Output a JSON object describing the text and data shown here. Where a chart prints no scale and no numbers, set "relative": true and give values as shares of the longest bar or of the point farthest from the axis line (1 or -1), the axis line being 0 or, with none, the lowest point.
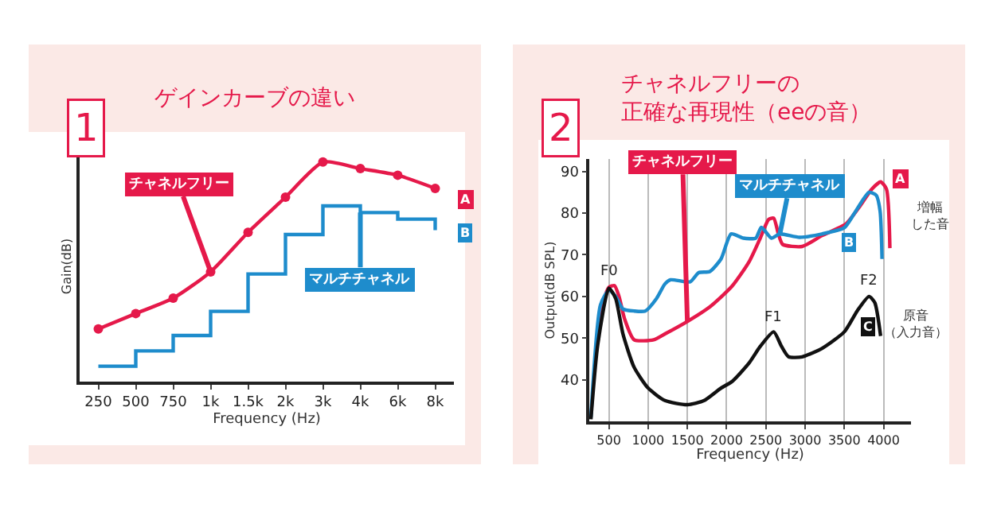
{
  "chart_data": [
    {
      "type": "line",
      "title": "ゲインカーブの違い",
      "xlabel": "Frequency (Hz)",
      "ylabel": "Gain(dB)",
      "relative": true,
      "legend": false,
      "annotations": [
        "1",
        "A",
        "B"
      ],
      "categories": [
        "250",
        "500",
        "750",
        "1k",
        "1.5k",
        "2k",
        "3k",
        "4k",
        "6k",
        "8k"
      ],
      "series": [
        {
          "name": "チャネルフリー",
          "color": "#e5194a",
          "marker": "circle",
          "values": [
            0.24,
            0.31,
            0.38,
            0.5,
            0.68,
            0.84,
            1.0,
            0.97,
            0.94,
            0.88
          ]
        },
        {
          "name": "マルチチャネル",
          "type": "step",
          "color": "#1e8ccc",
          "values": [
            0.07,
            0.14,
            0.21,
            0.32,
            0.49,
            0.67,
            0.8,
            0.77,
            0.74,
            0.69
          ]
        }
      ]
    },
    {
      "type": "line",
      "title": "チャネルフリーの正確な再現性（eeの音）",
      "xlabel": "Frequency (Hz)",
      "ylabel": "Output(dB SPL)",
      "legend": false,
      "grid": "x",
      "marker": "none",
      "xlim": [
        250,
        4350
      ],
      "xticks": [
        500,
        1000,
        1500,
        2000,
        2500,
        3000,
        3500,
        4000
      ],
      "ylim": [
        30,
        93
      ],
      "yticks": [
        40,
        50,
        60,
        70,
        80,
        90
      ],
      "annotations": [
        "2",
        "A",
        "B",
        "C",
        "増幅した音",
        "原音（入力音）",
        {
          "text": "F0",
          "x": 500,
          "y": 62.5
        },
        {
          "text": "F1",
          "x": 2600,
          "y": 51.5
        },
        {
          "text": "F2",
          "x": 3815,
          "y": 60
        }
      ],
      "series": [
        {
          "name": "チャネルフリー",
          "color": "#e5194a",
          "x": [
            357,
            429,
            500,
            571,
            629,
            700,
            821,
            1071,
            1214,
            1500,
            1786,
            2071,
            2286,
            2429,
            2536,
            2600,
            2660,
            2714,
            2964,
            3214,
            3519,
            3704,
            3852,
            3963,
            4037,
            4081
          ],
          "values": [
            49,
            58.6,
            62.2,
            62.6,
            60,
            54.6,
            49.6,
            49.6,
            51,
            54,
            57.5,
            62.5,
            68.3,
            74,
            78.5,
            78.8,
            75,
            72.5,
            72,
            74.6,
            77.4,
            81.8,
            85.8,
            87.5,
            85.8,
            71.6
          ]
        },
        {
          "name": "マルチチャネル",
          "color": "#1e8ccc",
          "x": [
            271,
            393,
            500,
            586,
            679,
            821,
            964,
            1107,
            1214,
            1286,
            1536,
            1643,
            1786,
            1929,
            2057,
            2214,
            2371,
            2443,
            2571,
            2679,
            2929,
            3214,
            3500,
            3630,
            3815,
            3907,
            3956,
            3981
          ],
          "values": [
            31,
            58,
            61.5,
            60,
            57,
            56.5,
            56.5,
            59.5,
            63,
            64,
            63.5,
            65.7,
            66,
            69,
            75,
            74,
            74,
            76.6,
            74,
            75,
            74.2,
            75,
            76.5,
            80,
            85,
            84.3,
            80.5,
            69
          ]
        },
        {
          "color": "#111111",
          "x": [
            271,
            357,
            500,
            586,
            679,
            821,
            1000,
            1214,
            1500,
            1714,
            1929,
            2071,
            2286,
            2429,
            2600,
            2700,
            2790,
            2964,
            3214,
            3500,
            3667,
            3815,
            3889,
            3963
          ],
          "values": [
            30.5,
            48.3,
            62,
            59.5,
            51,
            43,
            38,
            35,
            34,
            35,
            38,
            39.6,
            44,
            48,
            51.5,
            48,
            45.5,
            45.5,
            47.5,
            51.5,
            56.6,
            60,
            58.5,
            50.5
          ]
        }
      ]
    }
  ]
}
